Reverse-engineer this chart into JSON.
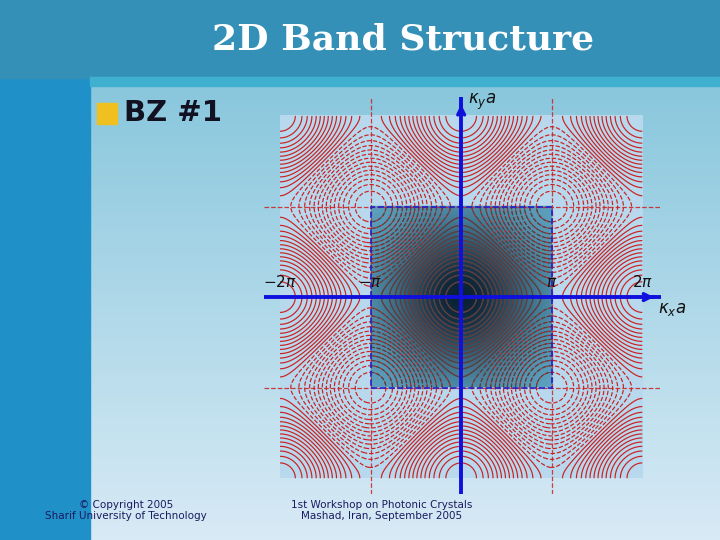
{
  "title": "2D Band Structure",
  "bullet_text": "BZ #1",
  "sidebar_color": "#2090c8",
  "bg_color_top": "#7ac0d8",
  "bg_color_bottom": "#d8eaf5",
  "title_bar_color": "#3590b8",
  "title_text_color": "#ffffff",
  "bullet_color": "#f0c020",
  "pi": 3.14159265358979,
  "copyright_text": "© Copyright 2005\nSharif University of Technology",
  "workshop_text": "1st Workshop on Photonic Crystals\nMashad, Iran, September 2005",
  "contour_color_red": "#cc2020",
  "contour_color_dark": "#2a4a4a",
  "bz_dashed_color": "#2020cc",
  "redline_color": "#cc2020",
  "axis_color": "#1010dd",
  "plot_bg_light": "#b8d8ec",
  "bz_center_dark": "#0a2030",
  "bz_center_light": "#60a8c8"
}
